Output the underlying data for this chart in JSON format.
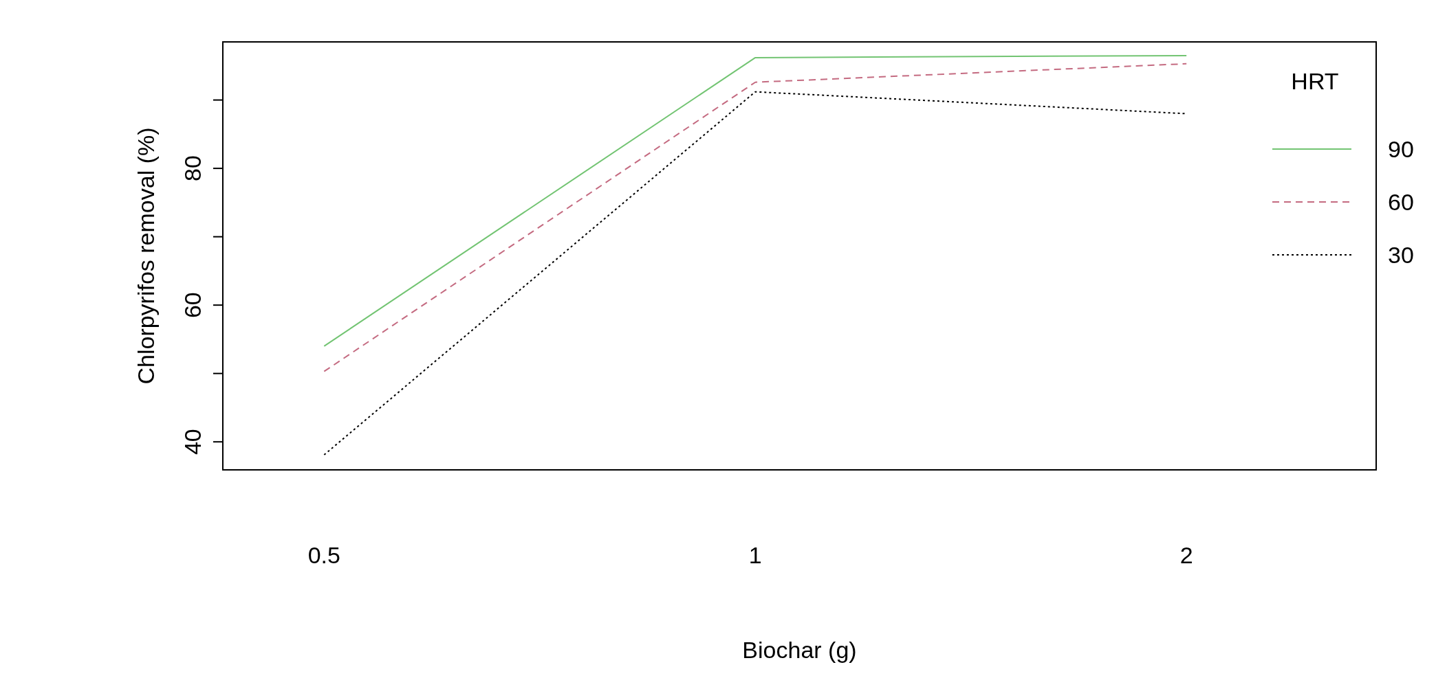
{
  "chart_data": {
    "type": "line",
    "xlabel": "Biochar (g)",
    "ylabel": "Chlorpyrifos removal (%)",
    "legend_title": "HRT",
    "legend": "top right",
    "grid": false,
    "marker": "none",
    "categories": [
      "0.5",
      "1",
      "2"
    ],
    "ylim": [
      35.9,
      98.5
    ],
    "yticks": [
      40,
      {
        "value": 50,
        "label": null
      },
      60,
      {
        "value": 70,
        "label": null
      },
      80,
      {
        "value": 90,
        "label": null
      }
    ],
    "series": [
      {
        "name": "90",
        "color": "#72c472",
        "line_style": "solid",
        "values": [
          54.0,
          96.2,
          96.5
        ]
      },
      {
        "name": "60",
        "color": "#c46a80",
        "line_style": "dashed",
        "values": [
          50.3,
          92.6,
          95.3
        ]
      },
      {
        "name": "30",
        "color": "#000000",
        "line_style": "dotted",
        "values": [
          38.1,
          91.2,
          88.0
        ]
      }
    ]
  }
}
